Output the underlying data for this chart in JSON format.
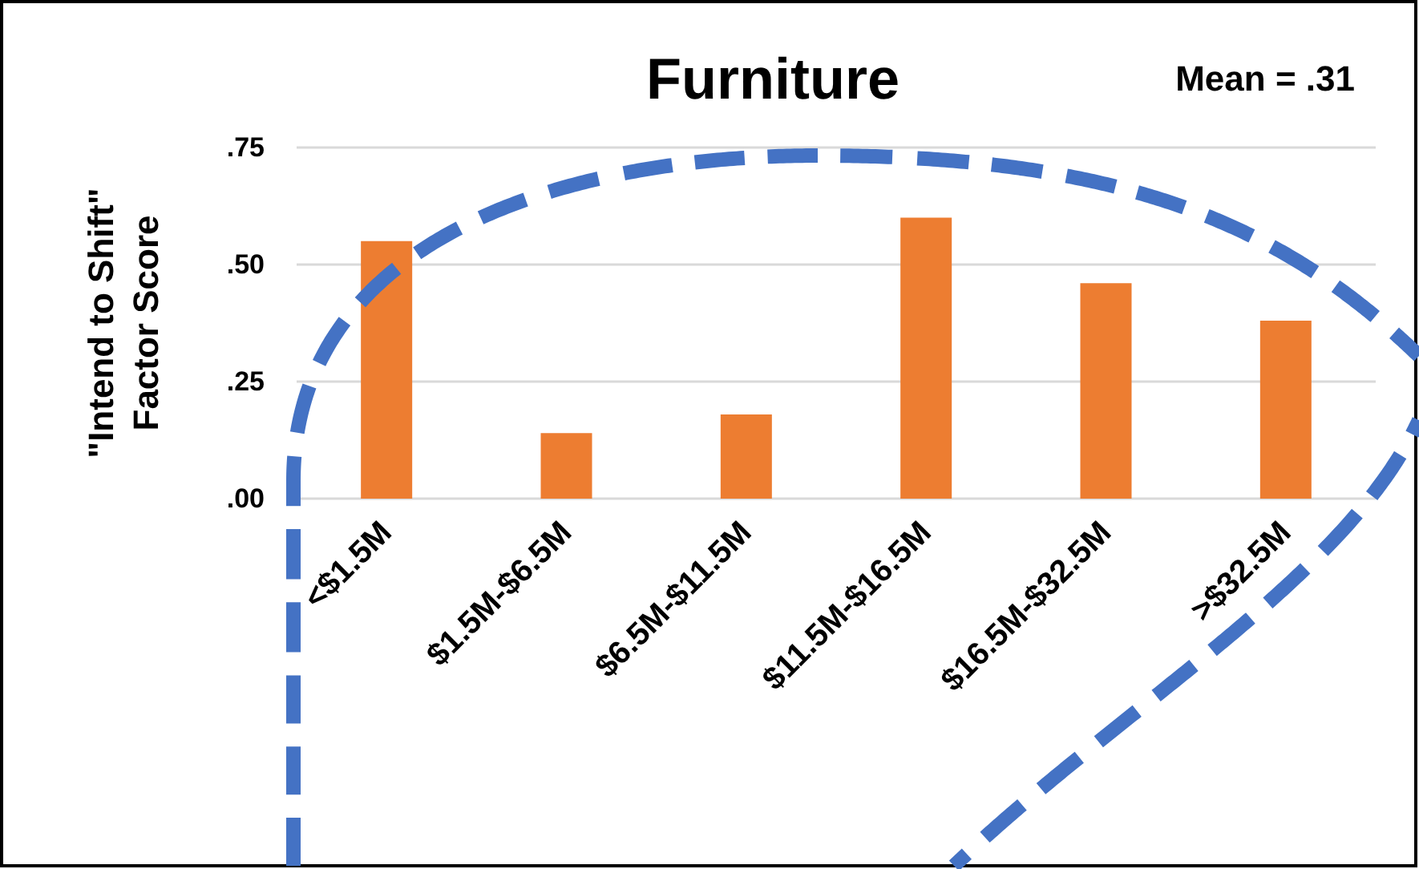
{
  "chart_data": {
    "type": "bar",
    "title": "Furniture",
    "ylabel": "\"Intend to Shift\"\nFactor Score",
    "annotations": [
      "Mean = .31"
    ],
    "categories": [
      "<$1.5M",
      "$1.5M-$6.5M",
      "$6.5M-$11.5M",
      "$11.5M-$16.5M",
      "$16.5M-$32.5M",
      ">$32.5M"
    ],
    "values": [
      0.55,
      0.14,
      0.18,
      0.6,
      0.46,
      0.38
    ],
    "color": "#ed7d31",
    "ylim": [
      0,
      0.75
    ],
    "yticks": [
      {
        "value": 0,
        "label": ".00"
      },
      {
        "value": 0.25,
        "label": ".25"
      },
      {
        "value": 0.5,
        "label": ".50"
      },
      {
        "value": 0.75,
        "label": ".75"
      }
    ],
    "grid": true
  }
}
